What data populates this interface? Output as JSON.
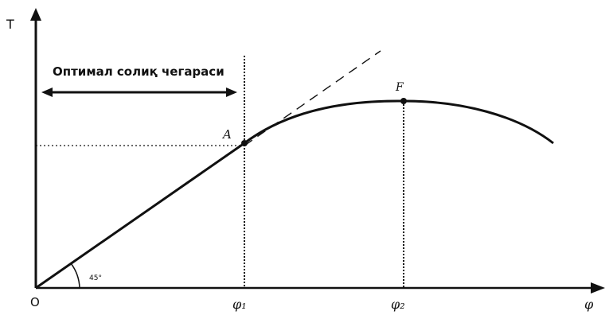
{
  "diagram": {
    "y_axis_label": "T",
    "x_axis_label": "φ",
    "origin_label": "O",
    "zone_label": "Оптимал солиқ чегараси",
    "angle_label": "45°",
    "point_a_label": "A",
    "point_f_label": "F",
    "tick_phi1_label": "φ₁",
    "tick_phi2_label": "φ₂",
    "colors": {
      "ink": "#111111",
      "background": "#ffffff"
    }
  }
}
